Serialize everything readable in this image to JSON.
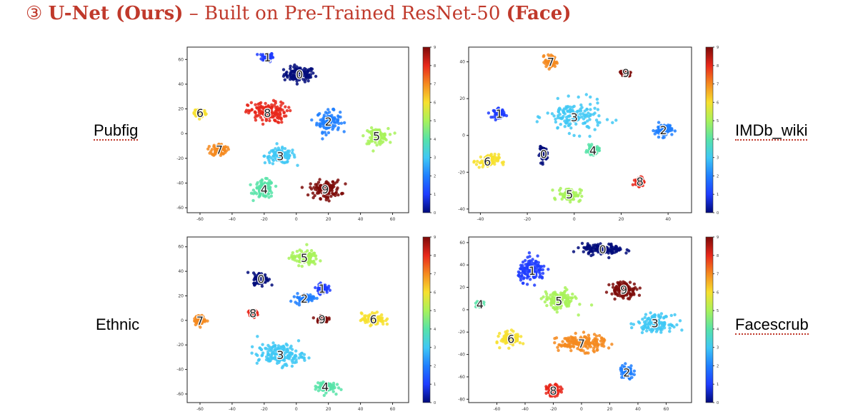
{
  "title": {
    "number": "③",
    "bold_a": "U-Net (Ours)",
    "mid": " – Built on Pre-Trained ResNet-50 ",
    "bold_b": "(Face)"
  },
  "colors": {
    "title": "#c0392b",
    "classes": [
      "#000a7a",
      "#1e3cff",
      "#1f7fff",
      "#3fc8f5",
      "#57e3a8",
      "#a8f25a",
      "#f7e02e",
      "#f58a1f",
      "#e8271a",
      "#7c0a08"
    ]
  },
  "labels": {
    "pubfig": "Pubfig",
    "imdb": "IMDb_wiki",
    "ethnic": "Ethnic",
    "facescrub": "Facescrub"
  },
  "chart_data": [
    {
      "type": "scatter",
      "name": "Pubfig",
      "xticks": [
        -60,
        -40,
        -20,
        0,
        20,
        40,
        60
      ],
      "yticks": [
        -60,
        -40,
        -20,
        0,
        20,
        40,
        60
      ],
      "xlim": [
        -68,
        70
      ],
      "ylim": [
        -64,
        70
      ],
      "colorbar_ticks": [
        0,
        1,
        2,
        3,
        4,
        5,
        6,
        7,
        8,
        9
      ],
      "clusters": [
        {
          "label": "0",
          "x": 2,
          "y": 48,
          "spread": [
            8,
            5
          ]
        },
        {
          "label": "1",
          "x": -18,
          "y": 62,
          "spread": [
            3,
            3
          ]
        },
        {
          "label": "2",
          "x": 20,
          "y": 10,
          "spread": [
            6,
            7
          ]
        },
        {
          "label": "3",
          "x": -10,
          "y": -18,
          "spread": [
            8,
            5
          ]
        },
        {
          "label": "4",
          "x": -20,
          "y": -45,
          "spread": [
            5,
            6
          ]
        },
        {
          "label": "5",
          "x": 50,
          "y": -2,
          "spread": [
            6,
            5
          ]
        },
        {
          "label": "6",
          "x": -60,
          "y": 17,
          "spread": [
            3,
            3
          ]
        },
        {
          "label": "7",
          "x": -48,
          "y": -13,
          "spread": [
            4,
            4
          ]
        },
        {
          "label": "8",
          "x": -18,
          "y": 17,
          "spread": [
            10,
            7
          ]
        },
        {
          "label": "9",
          "x": 18,
          "y": -45,
          "spread": [
            8,
            6
          ]
        }
      ]
    },
    {
      "type": "scatter",
      "name": "IMDb_wiki",
      "xticks": [
        -40,
        -20,
        0,
        20,
        40
      ],
      "yticks": [
        -40,
        -20,
        0,
        20,
        40
      ],
      "xlim": [
        -45,
        50
      ],
      "ylim": [
        -42,
        48
      ],
      "colorbar_ticks": [
        0,
        1,
        2,
        3,
        4,
        5,
        6,
        7,
        8,
        9
      ],
      "clusters": [
        {
          "label": "0",
          "x": -13,
          "y": -10,
          "spread": [
            1.5,
            3
          ]
        },
        {
          "label": "1",
          "x": -32,
          "y": 12,
          "spread": [
            2,
            2
          ]
        },
        {
          "label": "2",
          "x": 38,
          "y": 3,
          "spread": [
            3,
            3
          ]
        },
        {
          "label": "3",
          "x": 0,
          "y": 10,
          "spread": [
            10,
            7
          ]
        },
        {
          "label": "4",
          "x": 8,
          "y": -8,
          "spread": [
            2,
            2
          ]
        },
        {
          "label": "5",
          "x": -2,
          "y": -32,
          "spread": [
            4,
            3
          ]
        },
        {
          "label": "6",
          "x": -37,
          "y": -14,
          "spread": [
            4,
            3
          ]
        },
        {
          "label": "7",
          "x": -10,
          "y": 40,
          "spread": [
            2,
            3
          ]
        },
        {
          "label": "8",
          "x": 28,
          "y": -25,
          "spread": [
            1.5,
            2
          ]
        },
        {
          "label": "9",
          "x": 22,
          "y": 34,
          "spread": [
            2,
            1.5
          ]
        }
      ]
    },
    {
      "type": "scatter",
      "name": "Ethnic",
      "xticks": [
        -60,
        -40,
        -20,
        0,
        20,
        40,
        60
      ],
      "yticks": [
        -60,
        -40,
        -20,
        0,
        20,
        40,
        60
      ],
      "xlim": [
        -68,
        70
      ],
      "ylim": [
        -67,
        68
      ],
      "colorbar_ticks": [
        0,
        1,
        2,
        3,
        4,
        5,
        6,
        7,
        8,
        9
      ],
      "clusters": [
        {
          "label": "0",
          "x": -22,
          "y": 34,
          "spread": [
            4,
            4
          ]
        },
        {
          "label": "1",
          "x": 16,
          "y": 26,
          "spread": [
            3,
            3
          ]
        },
        {
          "label": "2",
          "x": 5,
          "y": 18,
          "spread": [
            5,
            3
          ]
        },
        {
          "label": "3",
          "x": -10,
          "y": -28,
          "spread": [
            12,
            7
          ]
        },
        {
          "label": "4",
          "x": 18,
          "y": -54,
          "spread": [
            5,
            4
          ]
        },
        {
          "label": "5",
          "x": 5,
          "y": 51,
          "spread": [
            7,
            5
          ]
        },
        {
          "label": "6",
          "x": 48,
          "y": 1,
          "spread": [
            6,
            4
          ]
        },
        {
          "label": "7",
          "x": -60,
          "y": 0,
          "spread": [
            3,
            3
          ]
        },
        {
          "label": "8",
          "x": -27,
          "y": 6,
          "spread": [
            2,
            2
          ]
        },
        {
          "label": "9",
          "x": 16,
          "y": 1,
          "spread": [
            3,
            2
          ]
        }
      ]
    },
    {
      "type": "scatter",
      "name": "Facescrub",
      "xticks": [
        -60,
        -40,
        -20,
        0,
        20,
        40,
        60
      ],
      "yticks": [
        -80,
        -60,
        -40,
        -20,
        0,
        20,
        40,
        60
      ],
      "xlim": [
        -80,
        78
      ],
      "ylim": [
        -83,
        65
      ],
      "colorbar_ticks": [
        0,
        1,
        2,
        3,
        4,
        5,
        6,
        7,
        8,
        9
      ],
      "clusters": [
        {
          "label": "0",
          "x": 15,
          "y": 54,
          "spread": [
            12,
            4
          ]
        },
        {
          "label": "1",
          "x": -35,
          "y": 35,
          "spread": [
            8,
            8
          ]
        },
        {
          "label": "2",
          "x": 32,
          "y": -56,
          "spread": [
            4,
            5
          ]
        },
        {
          "label": "3",
          "x": 52,
          "y": -12,
          "spread": [
            10,
            6
          ]
        },
        {
          "label": "4",
          "x": -72,
          "y": 5,
          "spread": [
            2,
            2
          ]
        },
        {
          "label": "5",
          "x": -16,
          "y": 8,
          "spread": [
            9,
            7
          ]
        },
        {
          "label": "6",
          "x": -50,
          "y": -26,
          "spread": [
            6,
            5
          ]
        },
        {
          "label": "7",
          "x": 0,
          "y": -30,
          "spread": [
            14,
            6
          ]
        },
        {
          "label": "8",
          "x": -20,
          "y": -72,
          "spread": [
            4,
            4
          ]
        },
        {
          "label": "9",
          "x": 30,
          "y": 18,
          "spread": [
            8,
            6
          ]
        }
      ]
    }
  ]
}
